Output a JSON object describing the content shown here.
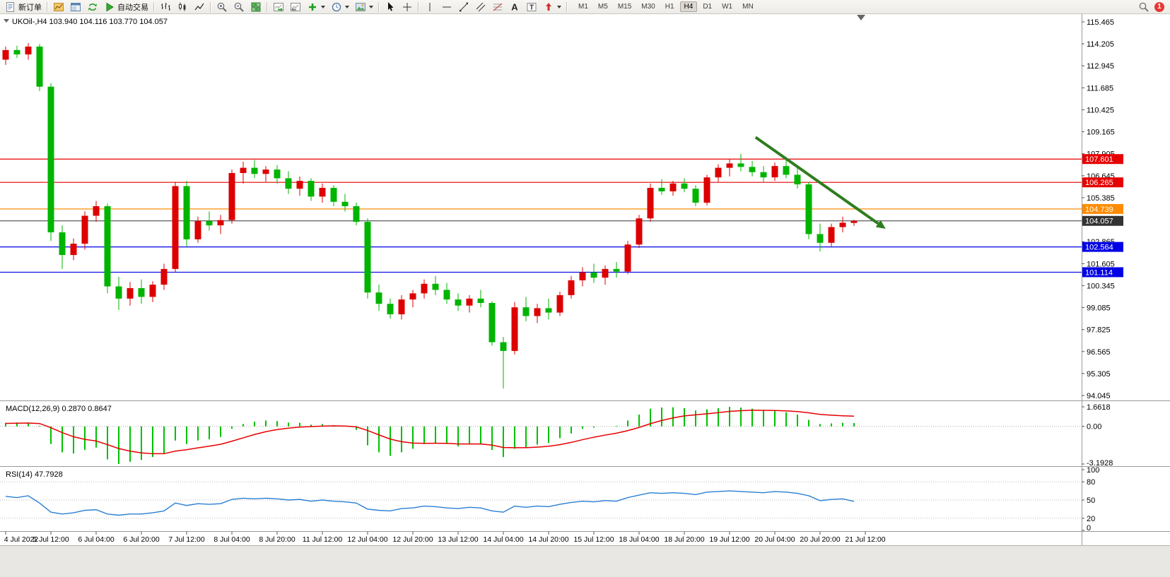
{
  "toolbar": {
    "new_order_label": "新订单",
    "autotrade_label": "自动交易",
    "timeframes": [
      "M1",
      "M5",
      "M15",
      "M30",
      "H1",
      "H4",
      "D1",
      "W1",
      "MN"
    ],
    "active_timeframe": "H4",
    "notification_count": "1",
    "icon_names": [
      "new-order",
      "profile-chart",
      "market-watch",
      "refresh",
      "autotrade-play",
      "bars-chart",
      "candlestick-chart",
      "line-chart",
      "zoom-in",
      "zoom-out",
      "tile-windows",
      "auto-scroll",
      "chart-shift",
      "add-indicator",
      "periods-clock",
      "templates",
      "cursor",
      "crosshair",
      "vertical-line",
      "horizontal-line",
      "trendline",
      "channel",
      "fibonacci",
      "text",
      "text-label",
      "arrows",
      "search",
      "notification-badge"
    ]
  },
  "chart_data": {
    "type": "candlestick",
    "symbol": "UKOil-",
    "timeframe": "H4",
    "title": "UKOil-,H4 103.940 104.116 103.770 104.057",
    "colors": {
      "up": "#dd0000",
      "down": "#00b400",
      "background": "#ffffff"
    },
    "price_axis": {
      "max": 115.465,
      "min": 94.045,
      "tick_labels": [
        "115.465",
        "114.205",
        "112.945",
        "111.685",
        "110.425",
        "109.165",
        "107.905",
        "106.645",
        "105.385",
        "104.125",
        "102.865",
        "101.605",
        "100.345",
        "99.085",
        "97.825",
        "96.565",
        "95.305",
        "94.045"
      ]
    },
    "time_labels": [
      "4 Jul 2022",
      "5 Jul 12:00",
      "6 Jul 04:00",
      "6 Jul 20:00",
      "7 Jul 12:00",
      "8 Jul 04:00",
      "8 Jul 20:00",
      "11 Jul 12:00",
      "12 Jul 04:00",
      "12 Jul 20:00",
      "13 Jul 12:00",
      "14 Jul 04:00",
      "14 Jul 20:00",
      "15 Jul 12:00",
      "18 Jul 04:00",
      "18 Jul 20:00",
      "19 Jul 12:00",
      "20 Jul 04:00",
      "20 Jul 20:00",
      "21 Jul 12:00"
    ],
    "h_lines": [
      {
        "price": 107.601,
        "label": "107.601",
        "color": "#e60000"
      },
      {
        "price": 106.265,
        "label": "106.265",
        "color": "#e60000"
      },
      {
        "price": 104.739,
        "label": "104.739",
        "color": "#ff8c00"
      },
      {
        "price": 104.057,
        "label": "104.057",
        "color": "#333333",
        "is_current_price": true
      },
      {
        "price": 102.564,
        "label": "102.564",
        "color": "#0000e6"
      },
      {
        "price": 101.114,
        "label": "101.114",
        "color": "#0000e6"
      }
    ],
    "trend_arrow": {
      "from_index": 66.3,
      "from_price": 108.85,
      "to_index": 77.8,
      "to_price": 103.6,
      "color": "#2e7d1e"
    },
    "candles": [
      [
        113.3,
        114.05,
        113.0,
        113.85
      ],
      [
        113.85,
        114.1,
        113.4,
        113.6
      ],
      [
        113.6,
        114.25,
        113.3,
        114.05
      ],
      [
        114.05,
        114.2,
        111.5,
        111.75
      ],
      [
        111.75,
        111.95,
        102.9,
        103.4
      ],
      [
        103.4,
        103.8,
        101.3,
        102.1
      ],
      [
        102.1,
        103.05,
        101.8,
        102.75
      ],
      [
        102.75,
        104.6,
        102.4,
        104.35
      ],
      [
        104.35,
        105.2,
        104.0,
        104.9
      ],
      [
        104.9,
        105.05,
        99.9,
        100.3
      ],
      [
        100.3,
        100.85,
        98.95,
        99.6
      ],
      [
        99.6,
        100.55,
        99.2,
        100.2
      ],
      [
        100.2,
        100.7,
        99.3,
        99.7
      ],
      [
        99.7,
        100.6,
        99.4,
        100.4
      ],
      [
        100.4,
        101.6,
        100.1,
        101.3
      ],
      [
        101.3,
        106.3,
        101.1,
        106.05
      ],
      [
        106.05,
        106.35,
        102.6,
        103.0
      ],
      [
        103.0,
        104.3,
        102.8,
        104.05
      ],
      [
        104.05,
        104.6,
        103.5,
        103.8
      ],
      [
        103.8,
        104.4,
        103.3,
        104.1
      ],
      [
        104.1,
        107.0,
        103.9,
        106.8
      ],
      [
        106.8,
        107.45,
        106.2,
        107.1
      ],
      [
        107.1,
        107.55,
        106.5,
        106.75
      ],
      [
        106.75,
        107.2,
        106.3,
        107.0
      ],
      [
        107.0,
        107.25,
        106.2,
        106.5
      ],
      [
        106.5,
        106.9,
        105.6,
        105.9
      ],
      [
        105.9,
        106.6,
        105.5,
        106.35
      ],
      [
        106.35,
        106.5,
        105.2,
        105.45
      ],
      [
        105.45,
        106.2,
        105.1,
        105.95
      ],
      [
        105.95,
        106.1,
        104.9,
        105.15
      ],
      [
        105.15,
        105.6,
        104.6,
        104.9
      ],
      [
        104.9,
        105.1,
        103.8,
        104.0
      ],
      [
        104.0,
        104.2,
        99.6,
        99.95
      ],
      [
        99.95,
        100.4,
        98.9,
        99.3
      ],
      [
        99.3,
        99.6,
        98.45,
        98.7
      ],
      [
        98.7,
        99.8,
        98.4,
        99.55
      ],
      [
        99.55,
        100.1,
        99.1,
        99.9
      ],
      [
        99.9,
        100.7,
        99.6,
        100.45
      ],
      [
        100.45,
        100.9,
        99.8,
        100.1
      ],
      [
        100.1,
        100.5,
        99.3,
        99.55
      ],
      [
        99.55,
        99.9,
        98.9,
        99.2
      ],
      [
        99.2,
        99.8,
        98.8,
        99.6
      ],
      [
        99.6,
        100.1,
        99.1,
        99.35
      ],
      [
        99.35,
        99.45,
        96.9,
        97.1
      ],
      [
        97.1,
        97.4,
        94.45,
        96.6
      ],
      [
        96.6,
        99.4,
        96.4,
        99.1
      ],
      [
        99.1,
        99.7,
        98.3,
        98.6
      ],
      [
        98.6,
        99.3,
        98.2,
        99.05
      ],
      [
        99.05,
        99.6,
        98.4,
        98.8
      ],
      [
        98.8,
        100.0,
        98.6,
        99.8
      ],
      [
        99.8,
        100.9,
        99.6,
        100.65
      ],
      [
        100.65,
        101.4,
        100.3,
        101.1
      ],
      [
        101.1,
        101.6,
        100.5,
        100.8
      ],
      [
        100.8,
        101.5,
        100.4,
        101.3
      ],
      [
        101.3,
        101.7,
        100.8,
        101.15
      ],
      [
        101.15,
        102.9,
        101.0,
        102.7
      ],
      [
        102.7,
        104.4,
        102.5,
        104.2
      ],
      [
        104.2,
        106.2,
        104.0,
        105.95
      ],
      [
        105.95,
        106.45,
        105.55,
        105.75
      ],
      [
        105.75,
        106.35,
        105.5,
        106.2
      ],
      [
        106.2,
        106.5,
        105.7,
        105.9
      ],
      [
        105.9,
        106.1,
        104.9,
        105.1
      ],
      [
        105.1,
        106.7,
        104.95,
        106.55
      ],
      [
        106.55,
        107.3,
        106.3,
        107.1
      ],
      [
        107.1,
        107.6,
        106.6,
        107.35
      ],
      [
        107.35,
        107.9,
        106.9,
        107.15
      ],
      [
        107.15,
        107.5,
        106.6,
        106.85
      ],
      [
        106.85,
        107.2,
        106.3,
        106.55
      ],
      [
        106.55,
        107.4,
        106.35,
        107.2
      ],
      [
        107.2,
        107.55,
        106.5,
        106.7
      ],
      [
        106.7,
        107.1,
        105.9,
        106.15
      ],
      [
        106.15,
        106.3,
        103.0,
        103.3
      ],
      [
        103.3,
        103.9,
        102.3,
        102.8
      ],
      [
        102.8,
        103.9,
        102.6,
        103.7
      ],
      [
        103.7,
        104.3,
        103.4,
        103.95
      ],
      [
        103.94,
        104.116,
        103.77,
        104.057
      ]
    ],
    "macd": {
      "display": "MACD(12,26,9) 0.2870 0.8647",
      "params": "12,26,9",
      "main_value": 0.287,
      "signal_value": 0.8647,
      "max": 1.6618,
      "min": -3.1928,
      "scale_labels": [
        "1.6618",
        "0.00",
        "-3.1928"
      ],
      "colors": {
        "histogram": "#00c000",
        "signal": "#e60000"
      },
      "histogram": [
        0.3,
        0.33,
        0.3,
        0.05,
        -1.5,
        -2.2,
        -2.3,
        -2.0,
        -1.8,
        -2.8,
        -3.19,
        -3.0,
        -2.85,
        -2.6,
        -2.3,
        -1.2,
        -1.5,
        -1.2,
        -1.1,
        -0.9,
        -0.2,
        0.2,
        0.4,
        0.5,
        0.45,
        0.32,
        0.3,
        0.15,
        0.2,
        0.1,
        0.0,
        -0.3,
        -1.6,
        -2.2,
        -2.5,
        -2.2,
        -1.9,
        -1.5,
        -1.4,
        -1.5,
        -1.7,
        -1.5,
        -1.5,
        -2.0,
        -2.6,
        -1.9,
        -1.8,
        -1.55,
        -1.4,
        -1.0,
        -0.6,
        -0.2,
        -0.1,
        0.0,
        0.05,
        0.5,
        1.0,
        1.5,
        1.6,
        1.62,
        1.55,
        1.35,
        1.45,
        1.55,
        1.66,
        1.6,
        1.5,
        1.35,
        1.3,
        1.2,
        1.0,
        0.55,
        0.2,
        0.25,
        0.3,
        0.287
      ],
      "signal": [
        0.25,
        0.27,
        0.28,
        0.24,
        -0.11,
        -0.53,
        -0.88,
        -1.1,
        -1.24,
        -1.55,
        -1.88,
        -2.1,
        -2.25,
        -2.32,
        -2.32,
        -2.1,
        -1.98,
        -1.82,
        -1.68,
        -1.52,
        -1.26,
        -0.97,
        -0.69,
        -0.45,
        -0.27,
        -0.15,
        -0.06,
        -0.02,
        0.02,
        0.04,
        0.03,
        -0.04,
        -0.35,
        -0.72,
        -1.08,
        -1.3,
        -1.42,
        -1.44,
        -1.43,
        -1.44,
        -1.49,
        -1.49,
        -1.49,
        -1.59,
        -1.79,
        -1.81,
        -1.81,
        -1.76,
        -1.69,
        -1.55,
        -1.36,
        -1.13,
        -0.92,
        -0.74,
        -0.58,
        -0.36,
        -0.09,
        0.23,
        0.5,
        0.72,
        0.89,
        0.98,
        1.07,
        1.17,
        1.27,
        1.33,
        1.37,
        1.36,
        1.35,
        1.32,
        1.26,
        1.15,
        1.02,
        0.95,
        0.9,
        0.8647
      ]
    },
    "rsi": {
      "display": "RSI(14) 47.7928",
      "period": 14,
      "value": 47.7928,
      "scale_labels": [
        "100",
        "80",
        "50",
        "20",
        "0"
      ],
      "levels": [
        80,
        50,
        20
      ],
      "color": "#2a7fd4",
      "values": [
        56,
        54,
        57,
        45,
        30,
        27,
        29,
        33,
        34,
        27,
        25,
        27,
        27,
        29,
        32,
        45,
        41,
        44,
        43,
        44,
        51,
        53,
        52,
        53,
        52,
        50,
        51,
        48,
        50,
        48,
        47,
        45,
        35,
        33,
        32,
        36,
        37,
        40,
        39,
        37,
        36,
        38,
        37,
        32,
        30,
        40,
        38,
        40,
        39,
        43,
        46,
        48,
        47,
        49,
        48,
        54,
        58,
        62,
        61,
        62,
        61,
        59,
        63,
        64,
        65,
        64,
        63,
        62,
        64,
        63,
        61,
        57,
        49,
        51,
        52,
        47.7928
      ]
    }
  }
}
